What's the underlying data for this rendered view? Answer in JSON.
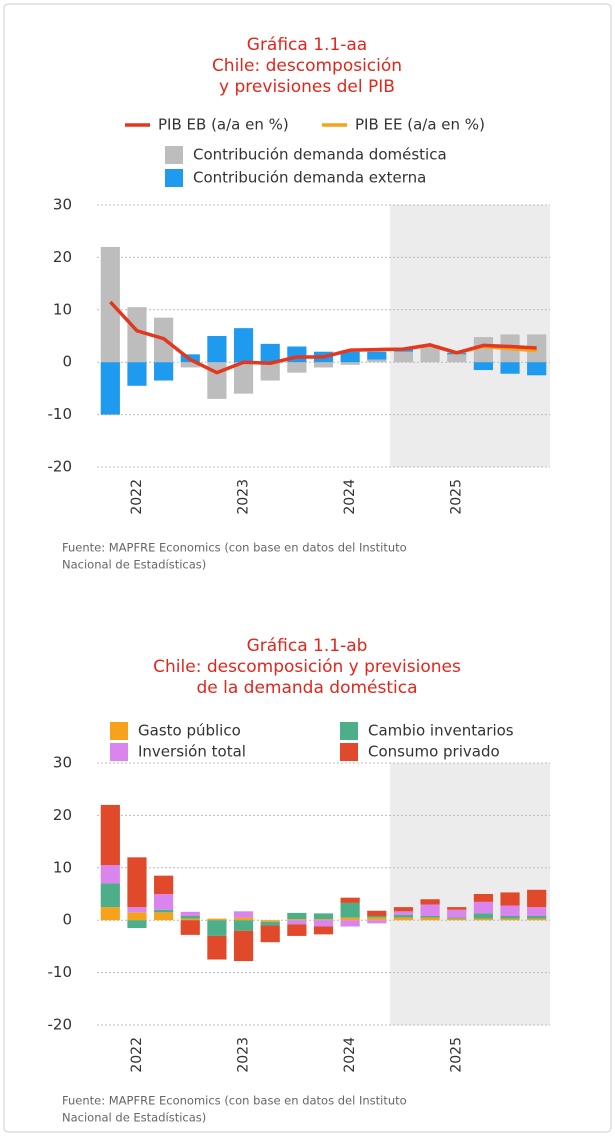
{
  "chart_data": [
    {
      "type": "bar",
      "stacked": true,
      "title": [
        "Gráfica 1.1-aa",
        "Chile: descomposición",
        "y previsiones del PIB"
      ],
      "categories": [
        null,
        "2022",
        null,
        null,
        null,
        "2023",
        null,
        null,
        null,
        "2024",
        null,
        null,
        null,
        "2025",
        null,
        null,
        null
      ],
      "shaded_from": 11,
      "series": [
        {
          "name": "PIB EB (a/a en %)",
          "type": "line",
          "color": "#e3371e",
          "values": [
            11.5,
            6,
            4.5,
            0.5,
            -2,
            0,
            -0.2,
            1,
            1,
            2.3,
            2.4,
            2.5,
            3.3,
            1.8,
            3.2,
            3,
            2.7
          ]
        },
        {
          "name": "PIB EE (a/a en %)",
          "type": "line",
          "color": "#f7a21b",
          "values": [
            null,
            null,
            null,
            null,
            null,
            null,
            null,
            null,
            null,
            null,
            2.4,
            2.5,
            3.3,
            1.8,
            3,
            2.6,
            2.2
          ]
        },
        {
          "name": "Contribución demanda doméstica",
          "type": "bar",
          "color": "#bdbdbd",
          "values": [
            22,
            10.5,
            8.5,
            -1,
            -7,
            -6,
            -3.5,
            -2,
            -1,
            -0.5,
            0.5,
            2,
            3,
            1.5,
            4.8,
            5.3,
            5.3
          ]
        },
        {
          "name": "Contribución demanda externa",
          "type": "bar",
          "color": "#1e9bef",
          "values": [
            -10,
            -4.5,
            -3.5,
            1.5,
            5,
            6.5,
            3.5,
            3,
            2,
            2,
            1.5,
            0.5,
            0.2,
            0.3,
            -1.5,
            -2.2,
            -2.5
          ]
        }
      ],
      "ylim": [
        -20,
        30
      ],
      "yticks": [
        -20,
        -10,
        0,
        10,
        20,
        30
      ],
      "grid": true,
      "source": [
        "Fuente: MAPFRE Economics (con base en datos del Instituto",
        "Nacional de Estadísticas)"
      ]
    },
    {
      "type": "bar",
      "stacked": true,
      "title": [
        "Gráfica 1.1-ab",
        "Chile: descomposición y previsiones",
        "de la demanda doméstica"
      ],
      "categories": [
        null,
        "2022",
        null,
        null,
        null,
        "2023",
        null,
        null,
        null,
        "2024",
        null,
        null,
        null,
        "2025",
        null,
        null,
        null
      ],
      "shaded_from": 11,
      "series": [
        {
          "name": "Gasto público",
          "type": "bar",
          "color": "#f7a21b",
          "values": [
            2.5,
            1.5,
            1.5,
            0.3,
            0.3,
            0.5,
            -0.3,
            0.2,
            0.2,
            0.5,
            0.5,
            0.5,
            0.5,
            0.3,
            0.3,
            0.3,
            0.3
          ]
        },
        {
          "name": "Cambio inventarios",
          "type": "bar",
          "color": "#4caf8a",
          "values": [
            4.5,
            -1.5,
            0.5,
            0.5,
            -3,
            -2,
            -0.7,
            1.2,
            1.1,
            2.8,
            0.3,
            0.5,
            0.3,
            0.2,
            1,
            0.5,
            0.5
          ]
        },
        {
          "name": "Inversión total",
          "type": "bar",
          "color": "#da84ee",
          "values": [
            3.5,
            1,
            3,
            0.8,
            0,
            1.2,
            0,
            -0.8,
            -1.2,
            -1.2,
            -0.6,
            0.7,
            2.2,
            1.5,
            2.2,
            2,
            1.7
          ]
        },
        {
          "name": "Consumo privado",
          "type": "bar",
          "color": "#e04a2a",
          "values": [
            11.5,
            9.5,
            3.5,
            -2.8,
            -4.5,
            -5.8,
            -3.2,
            -2.2,
            -1.5,
            1,
            1,
            0.8,
            1,
            0.5,
            1.5,
            2.5,
            3.3
          ]
        }
      ],
      "ylim": [
        -20,
        30
      ],
      "yticks": [
        -20,
        -10,
        0,
        10,
        20,
        30
      ],
      "grid": true,
      "source": [
        "Fuente: MAPFRE Economics (con base en datos del Instituto",
        "Nacional de Estadísticas)"
      ]
    }
  ]
}
